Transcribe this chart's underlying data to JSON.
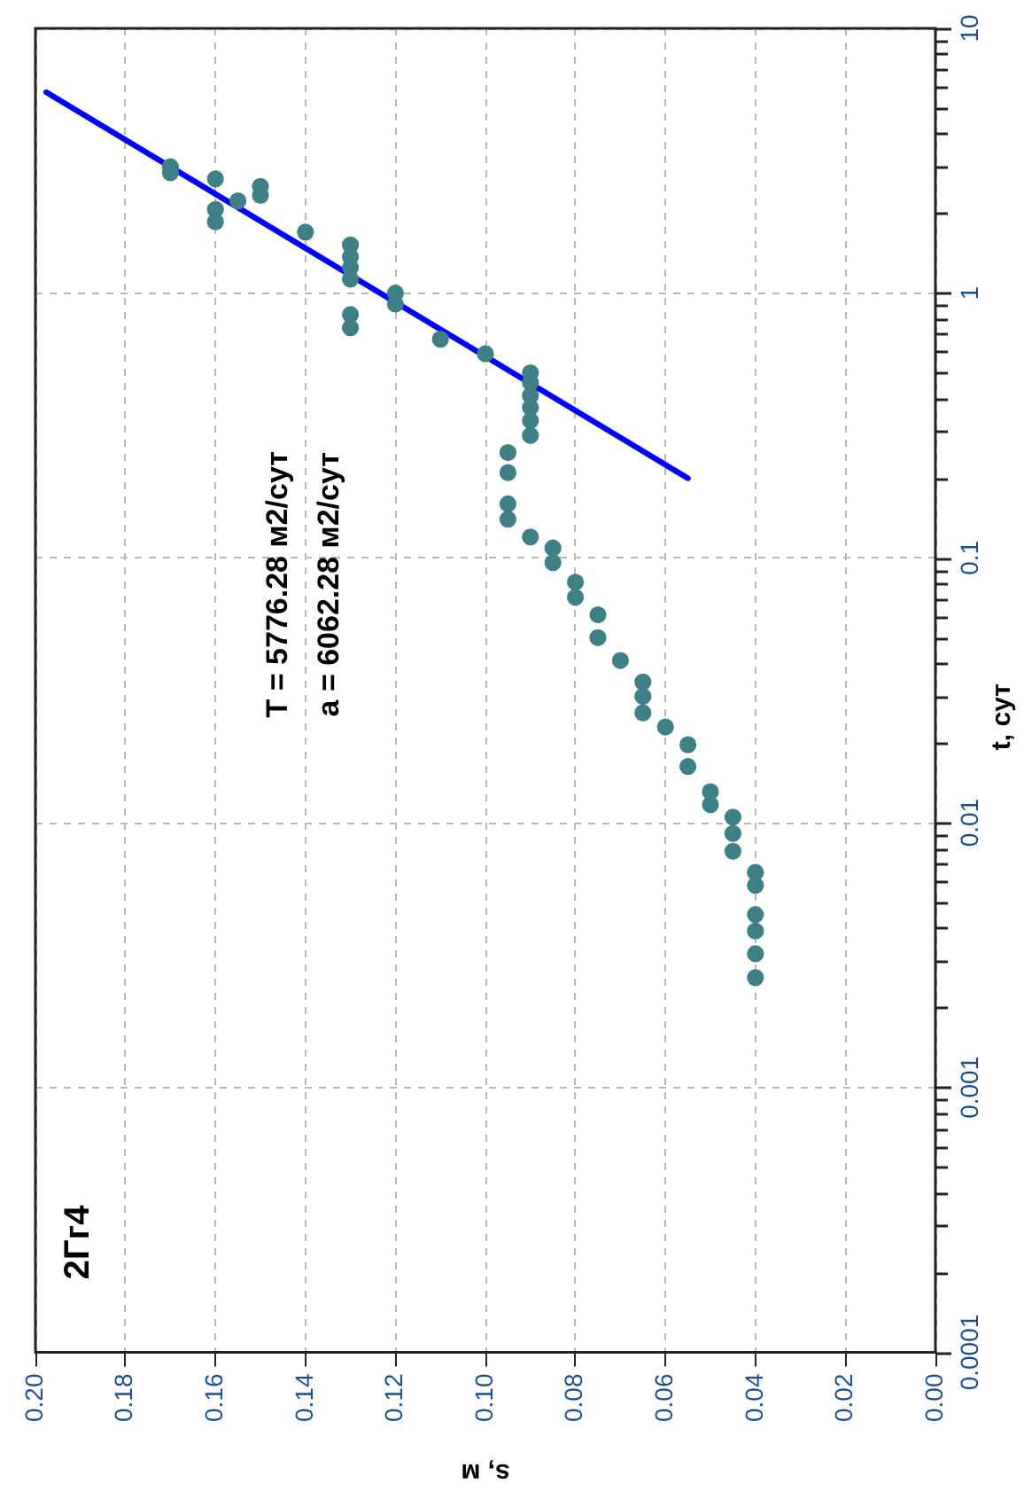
{
  "chart_data": {
    "type": "scatter",
    "title": "2Гг4",
    "xlabel": "s, м",
    "ylabel": "t, сут",
    "log": "y",
    "grid": true,
    "legend": false,
    "marker": "circle",
    "annotations": [
      "T = 5776.28 м2/сут",
      "a = 6062.28 м2/сут"
    ],
    "xlim": [
      0.2,
      0
    ],
    "ylim": [
      0.0001,
      10
    ],
    "xticks": [
      {
        "value": 0.2,
        "label": "0.20"
      },
      {
        "value": 0.18,
        "label": "0.18"
      },
      {
        "value": 0.16,
        "label": "0.16"
      },
      {
        "value": 0.14,
        "label": "0.14"
      },
      {
        "value": 0.12,
        "label": "0.12"
      },
      {
        "value": 0.1,
        "label": "0.10"
      },
      {
        "value": 0.08,
        "label": "0.08"
      },
      {
        "value": 0.06,
        "label": "0.06"
      },
      {
        "value": 0.04,
        "label": "0.04"
      },
      {
        "value": 0.02,
        "label": "0.02"
      },
      {
        "value": 0,
        "label": "0.00"
      }
    ],
    "yticks": [
      0.0001,
      {
        "value": 0.0002,
        "label": null
      },
      {
        "value": 0.0003,
        "label": null
      },
      {
        "value": 0.0004,
        "label": null
      },
      {
        "value": 0.0005,
        "label": null
      },
      {
        "value": 0.0006,
        "label": null
      },
      {
        "value": 0.0007,
        "label": null
      },
      {
        "value": 0.0008,
        "label": null
      },
      {
        "value": 0.0009,
        "label": null
      },
      0.001,
      {
        "value": 0.002,
        "label": null
      },
      {
        "value": 0.003,
        "label": null
      },
      {
        "value": 0.004,
        "label": null
      },
      {
        "value": 0.005,
        "label": null
      },
      {
        "value": 0.006,
        "label": null
      },
      {
        "value": 0.007,
        "label": null
      },
      {
        "value": 0.008,
        "label": null
      },
      {
        "value": 0.009,
        "label": null
      },
      0.01,
      {
        "value": 0.02,
        "label": null
      },
      {
        "value": 0.03,
        "label": null
      },
      {
        "value": 0.04,
        "label": null
      },
      {
        "value": 0.05,
        "label": null
      },
      {
        "value": 0.06,
        "label": null
      },
      {
        "value": 0.07,
        "label": null
      },
      {
        "value": 0.08,
        "label": null
      },
      {
        "value": 0.09,
        "label": null
      },
      0.1,
      {
        "value": 0.2,
        "label": null
      },
      {
        "value": 0.3,
        "label": null
      },
      {
        "value": 0.4,
        "label": null
      },
      {
        "value": 0.5,
        "label": null
      },
      {
        "value": 0.6,
        "label": null
      },
      {
        "value": 0.7,
        "label": null
      },
      {
        "value": 0.8,
        "label": null
      },
      {
        "value": 0.9,
        "label": null
      },
      1,
      {
        "value": 2,
        "label": null
      },
      {
        "value": 3,
        "label": null
      },
      {
        "value": 4,
        "label": null
      },
      {
        "value": 5,
        "label": null
      },
      {
        "value": 6,
        "label": null
      },
      {
        "value": 7,
        "label": null
      },
      {
        "value": 8,
        "label": null
      },
      {
        "value": 9,
        "label": null
      },
      10
    ],
    "series": [
      {
        "type": "scatter",
        "color": "#3f8086",
        "x": [
          0.17,
          0.17,
          0.16,
          0.16,
          0.16,
          0.155,
          0.15,
          0.15,
          0.14,
          0.13,
          0.13,
          0.13,
          0.13,
          0.13,
          0.13,
          0.12,
          0.12,
          0.11,
          0.1,
          0.09,
          0.09,
          0.09,
          0.09,
          0.09,
          0.09,
          0.095,
          0.095,
          0.095,
          0.095,
          0.09,
          0.085,
          0.085,
          0.08,
          0.08,
          0.075,
          0.075,
          0.07,
          0.065,
          0.065,
          0.065,
          0.06,
          0.055,
          0.055,
          0.05,
          0.05,
          0.045,
          0.045,
          0.045,
          0.04,
          0.04,
          0.04,
          0.04,
          0.04,
          0.04
        ],
        "values": [
          3.0,
          2.85,
          2.7,
          2.07,
          1.86,
          2.23,
          2.53,
          2.34,
          1.7,
          1.52,
          1.37,
          1.25,
          1.13,
          0.83,
          0.74,
          1.0,
          0.91,
          0.67,
          0.59,
          0.5,
          0.46,
          0.41,
          0.37,
          0.33,
          0.29,
          0.25,
          0.21,
          0.16,
          0.14,
          0.12,
          0.109,
          0.096,
          0.081,
          0.071,
          0.061,
          0.05,
          0.041,
          0.034,
          0.03,
          0.026,
          0.023,
          0.0197,
          0.0163,
          0.0131,
          0.0117,
          0.0105,
          0.0091,
          0.0078,
          0.0065,
          0.0058,
          0.0045,
          0.0039,
          0.0032,
          0.0026
        ]
      },
      {
        "type": "line",
        "color": "#0000ff",
        "marker": "none",
        "line_style": "solid",
        "x": [
          0.1976,
          0.055
        ],
        "values": [
          5.74,
          0.2
        ]
      }
    ]
  }
}
